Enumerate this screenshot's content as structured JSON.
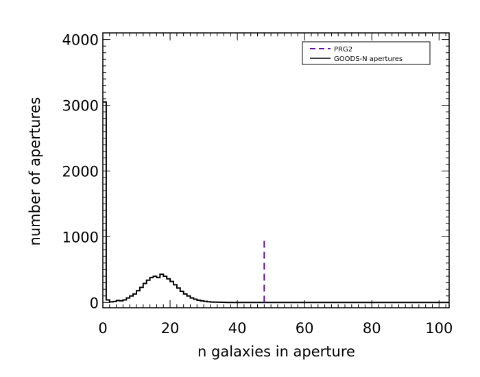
{
  "chart_data": {
    "type": "histogram",
    "xlabel": "n galaxies in aperture",
    "ylabel": "number of apertures",
    "xlim": [
      0,
      103
    ],
    "ylim": [
      -80,
      4100
    ],
    "xticks": [
      0,
      20,
      40,
      60,
      80,
      100
    ],
    "yticks": [
      0,
      1000,
      2000,
      3000,
      4000
    ],
    "grid": false,
    "legend_position": "top-right",
    "series": [
      {
        "name": "GOODS-N apertures",
        "style": "solid",
        "color": "#000000",
        "bin_width": 1,
        "bin_edges_start": 0,
        "counts": [
          3050,
          40,
          10,
          15,
          30,
          25,
          40,
          70,
          100,
          130,
          180,
          230,
          290,
          340,
          380,
          400,
          380,
          430,
          400,
          360,
          320,
          270,
          220,
          170,
          130,
          100,
          70,
          50,
          35,
          25,
          18,
          12,
          8,
          6,
          4,
          3,
          2,
          1,
          1,
          0
        ]
      },
      {
        "name": "PRG2",
        "style": "dashed",
        "color": "#5a0fa0",
        "type": "vline",
        "x": 48,
        "y_range": [
          0,
          950
        ]
      }
    ]
  }
}
